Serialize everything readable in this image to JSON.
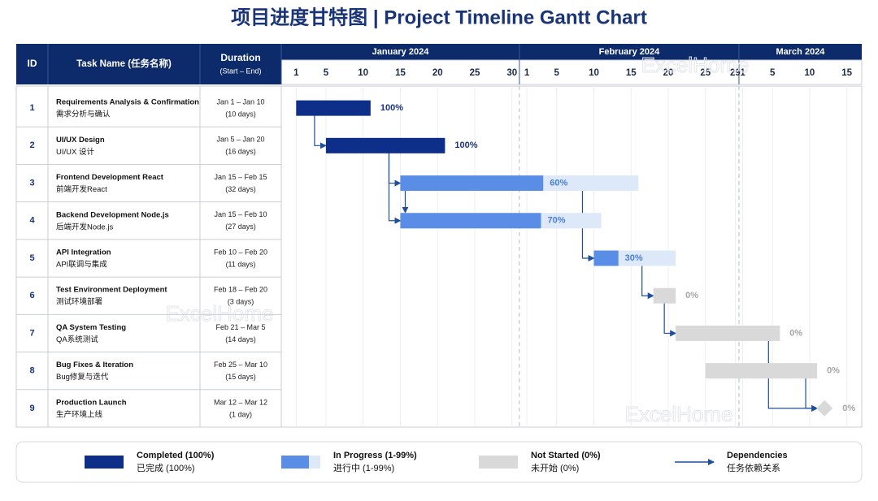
{
  "chart_data": {
    "type": "gantt",
    "title": "项目进度甘特图 | Project Timeline Gantt Chart",
    "header": {
      "id": "ID",
      "task": "Task Name (任务名称)",
      "duration": "Duration",
      "duration_sub": "(Start – End)"
    },
    "xlim": [
      -1,
      77
    ],
    "x_groups": [
      {
        "label": "January 2024",
        "ticks": [
          1,
          5,
          10,
          15,
          20,
          25,
          30
        ]
      },
      {
        "label": "February 2024",
        "ticks": [
          {
            "value": 32,
            "label": "1"
          },
          {
            "value": 36,
            "label": "5"
          },
          {
            "value": 41,
            "label": "10"
          },
          {
            "value": 46,
            "label": "15"
          },
          {
            "value": 51,
            "label": "20"
          },
          {
            "value": 56,
            "label": "25"
          },
          {
            "value": 60,
            "label": "29"
          }
        ]
      },
      {
        "label": "March 2024",
        "ticks": [
          {
            "value": 61,
            "label": "1"
          },
          {
            "value": 65,
            "label": "5"
          },
          {
            "value": 70,
            "label": "10"
          },
          {
            "value": 75,
            "label": "15"
          }
        ]
      }
    ],
    "tasks": [
      {
        "id": 1,
        "name": "Requirements Analysis & Confirmation",
        "name_cn": "需求分析与确认",
        "dates": "Jan 1 – Jan 10",
        "duration": "(10 days)",
        "start": 1,
        "end": 11,
        "progress": 100,
        "progress_label": "100%"
      },
      {
        "id": 2,
        "name": "UI/UX Design",
        "name_cn": "UI/UX 设计",
        "dates": "Jan 5 – Jan 20",
        "duration": "(16 days)",
        "start": 5,
        "end": 21,
        "progress": 100,
        "progress_label": "100%"
      },
      {
        "id": 3,
        "name": "Frontend Development React",
        "name_cn": "前端开发React",
        "dates": "Jan 15 – Feb 15",
        "duration": "(32 days)",
        "start": 15,
        "end": 47,
        "progress": 60,
        "progress_label": "60%"
      },
      {
        "id": 4,
        "name": "Backend Development Node.js",
        "name_cn": "后端开发Node.js",
        "dates": "Jan 15 – Feb 10",
        "duration": "(27 days)",
        "start": 15,
        "end": 42,
        "progress": 70,
        "progress_label": "70%"
      },
      {
        "id": 5,
        "name": "API Integration",
        "name_cn": "API联调与集成",
        "dates": "Feb 10 – Feb 20",
        "duration": "(11 days)",
        "start": 41,
        "end": 52,
        "progress": 30,
        "progress_label": "30%"
      },
      {
        "id": 6,
        "name": "Test Environment Deployment",
        "name_cn": "测试环境部署",
        "dates": "Feb 18 – Feb 20",
        "duration": "(3 days)",
        "start": 49,
        "end": 52,
        "progress": 0,
        "progress_label": "0%"
      },
      {
        "id": 7,
        "name": "QA System Testing",
        "name_cn": "QA系统测试",
        "dates": "Feb 21 – Mar 5",
        "duration": "(14 days)",
        "start": 52,
        "end": 66,
        "progress": 0,
        "progress_label": "0%"
      },
      {
        "id": 8,
        "name": "Bug Fixes & Iteration",
        "name_cn": "Bug修复与迭代",
        "dates": "Feb 25 – Mar 10",
        "duration": "(15 days)",
        "start": 56,
        "end": 71,
        "progress": 0,
        "progress_label": "0%"
      },
      {
        "id": 9,
        "name": "Production Launch",
        "name_cn": "生产环境上线",
        "dates": "Mar 12 – Mar 12",
        "duration": "(1 day)",
        "start": 72,
        "end": 72,
        "progress": 0,
        "progress_label": "0%"
      }
    ],
    "dependencies": [
      [
        1,
        2
      ],
      [
        2,
        3
      ],
      [
        2,
        4
      ],
      [
        3,
        4
      ],
      [
        3,
        5
      ],
      [
        5,
        6
      ],
      [
        6,
        7
      ],
      [
        7,
        9
      ],
      [
        8,
        9
      ]
    ],
    "dependency_color": "#1f4e9c",
    "legend": [
      {
        "label": "Completed (100%)",
        "label_cn": "已完成 (100%)",
        "color": "#0d2f8a"
      },
      {
        "label": "In Progress (1-99%)",
        "label_cn": "进行中 (1-99%)",
        "color": "#5a8ee6",
        "color_rest": "#dde8f8"
      },
      {
        "label": "Not Started (0%)",
        "label_cn": "未开始 (0%)",
        "color": "#d9d9d9"
      },
      {
        "label": "Dependencies",
        "label_cn": "任务依赖关系",
        "color": "#1f4e9c"
      }
    ],
    "watermark": "ExcelHome"
  }
}
